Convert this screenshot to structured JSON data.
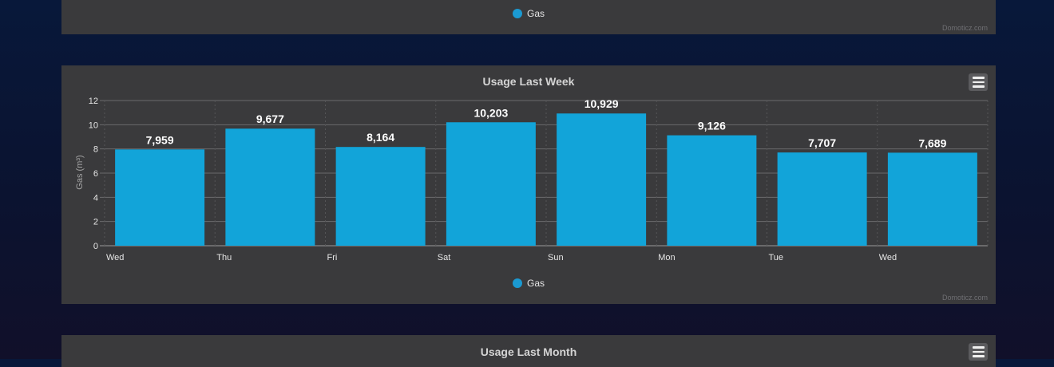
{
  "colors": {
    "bar": "#12a4d9",
    "legend_dot": "#1b9ad2",
    "panel": "#3a3a3c"
  },
  "top_panel": {
    "legend_label": "Gas",
    "credit": "Domoticz.com"
  },
  "week_panel": {
    "title": "Usage Last Week",
    "legend_label": "Gas",
    "credit": "Domoticz.com",
    "menu_icon": "hamburger-menu-icon"
  },
  "month_panel": {
    "title": "Usage Last Month",
    "menu_icon": "hamburger-menu-icon"
  },
  "chart_data": {
    "type": "bar",
    "title": "Usage Last Week",
    "xlabel": "",
    "ylabel": "Gas (m³)",
    "x_ticks": [
      "Wed",
      "Thu",
      "Fri",
      "Sat",
      "Sun",
      "Mon",
      "Tue",
      "Wed"
    ],
    "values": [
      7.959,
      9.677,
      8.164,
      10.203,
      10.929,
      9.126,
      7.707,
      7.689
    ],
    "data_labels": [
      "7,959",
      "9,677",
      "8,164",
      "10,203",
      "10,929",
      "9,126",
      "7,707",
      "7,689"
    ],
    "y_ticks": [
      0,
      2,
      4,
      6,
      8,
      10,
      12
    ],
    "ylim": [
      0,
      12
    ],
    "grid": true,
    "legend": [
      "Gas"
    ],
    "legend_position": "bottom-center"
  }
}
